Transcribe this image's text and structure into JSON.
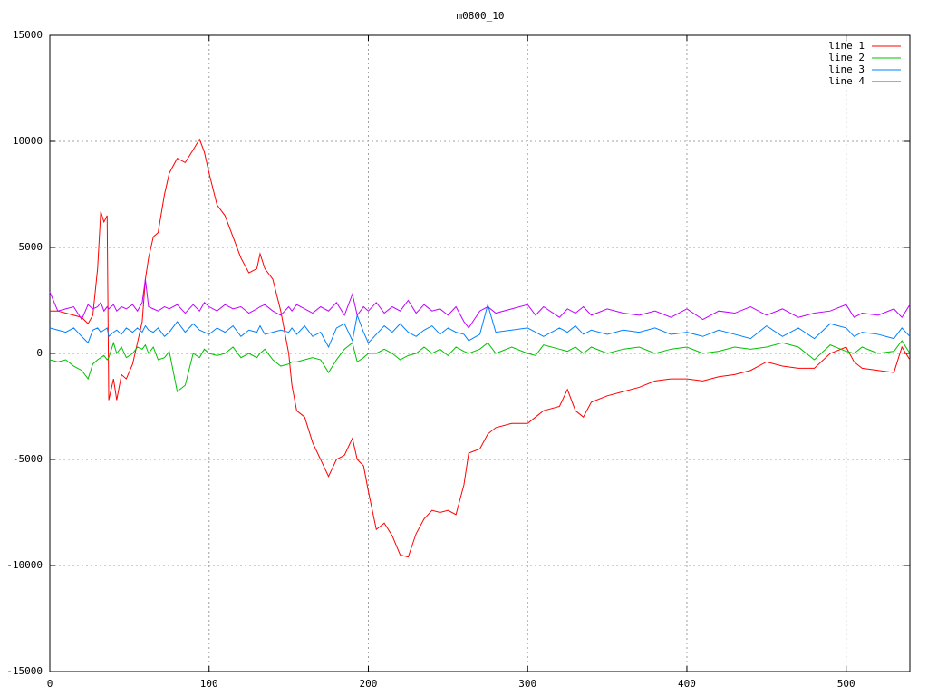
{
  "chart_data": {
    "type": "line",
    "title": "m0800_10",
    "x": [
      0,
      5,
      10,
      15,
      20,
      24,
      27,
      30,
      32,
      34,
      36,
      37,
      40,
      42,
      45,
      48,
      52,
      55,
      58,
      60,
      62,
      65,
      68,
      72,
      75,
      80,
      85,
      90,
      94,
      97,
      100,
      105,
      110,
      115,
      120,
      125,
      130,
      132,
      135,
      140,
      145,
      150,
      152,
      155,
      160,
      165,
      170,
      175,
      180,
      185,
      190,
      193,
      197,
      200,
      205,
      210,
      215,
      220,
      225,
      230,
      235,
      240,
      245,
      250,
      255,
      260,
      263,
      270,
      275,
      280,
      290,
      300,
      305,
      310,
      320,
      325,
      330,
      335,
      340,
      350,
      360,
      370,
      380,
      390,
      400,
      410,
      420,
      430,
      440,
      450,
      460,
      470,
      480,
      490,
      500,
      505,
      510,
      520,
      530,
      535,
      540
    ],
    "series": [
      {
        "name": "line 1",
        "color": "#ff0000",
        "values": [
          2000,
          2000,
          1900,
          1800,
          1700,
          1400,
          1800,
          4000,
          6700,
          6200,
          6500,
          -2200,
          -1200,
          -2200,
          -1000,
          -1200,
          -500,
          500,
          1500,
          3500,
          4500,
          5500,
          5700,
          7500,
          8500,
          9200,
          9000,
          9600,
          10100,
          9500,
          8500,
          7000,
          6500,
          5500,
          4500,
          3800,
          4000,
          4700,
          4000,
          3500,
          2000,
          0,
          -1500,
          -2700,
          -3000,
          -4200,
          -5000,
          -5800,
          -5000,
          -4800,
          -4000,
          -5000,
          -5300,
          -6500,
          -8300,
          -8000,
          -8600,
          -9500,
          -9600,
          -8500,
          -7800,
          -7400,
          -7500,
          -7400,
          -7600,
          -6200,
          -4700,
          -4500,
          -3800,
          -3500,
          -3300,
          -3300,
          -3000,
          -2700,
          -2500,
          -1700,
          -2700,
          -3000,
          -2300,
          -2000,
          -1800,
          -1600,
          -1300,
          -1200,
          -1200,
          -1300,
          -1100,
          -1000,
          -800,
          -400,
          -600,
          -700,
          -700,
          0,
          300,
          -400,
          -700,
          -800,
          -900,
          300,
          -300
        ]
      },
      {
        "name": "line 2",
        "color": "#00c000",
        "values": [
          -300,
          -400,
          -300,
          -600,
          -800,
          -1200,
          -500,
          -300,
          -200,
          -100,
          -300,
          -200,
          500,
          0,
          300,
          -200,
          0,
          300,
          200,
          400,
          0,
          300,
          -300,
          -200,
          100,
          -1800,
          -1500,
          0,
          -200,
          200,
          0,
          -100,
          0,
          300,
          -200,
          0,
          -200,
          0,
          200,
          -300,
          -600,
          -500,
          -400,
          -400,
          -300,
          -200,
          -300,
          -900,
          -300,
          200,
          500,
          -400,
          -200,
          0,
          0,
          200,
          0,
          -300,
          -100,
          0,
          300,
          0,
          200,
          -100,
          300,
          100,
          0,
          200,
          500,
          0,
          300,
          0,
          -100,
          400,
          200,
          100,
          300,
          0,
          300,
          0,
          200,
          300,
          0,
          200,
          300,
          0,
          100,
          300,
          200,
          300,
          500,
          300,
          -300,
          400,
          100,
          0,
          300,
          0,
          100,
          600,
          0
        ]
      },
      {
        "name": "line 3",
        "color": "#0080ff",
        "values": [
          1200,
          1100,
          1000,
          1200,
          800,
          500,
          1100,
          1200,
          1000,
          1100,
          1200,
          800,
          1000,
          1100,
          900,
          1200,
          1000,
          1200,
          1000,
          1300,
          1100,
          1000,
          1200,
          800,
          1000,
          1500,
          1000,
          1400,
          1100,
          1000,
          900,
          1200,
          1000,
          1300,
          800,
          1100,
          1000,
          1300,
          900,
          1000,
          1100,
          1000,
          1200,
          900,
          1300,
          800,
          1000,
          300,
          1200,
          1400,
          600,
          1800,
          1000,
          500,
          900,
          1300,
          1000,
          1400,
          1000,
          800,
          1100,
          1300,
          900,
          1200,
          1000,
          900,
          600,
          900,
          2300,
          1000,
          1100,
          1200,
          1000,
          800,
          1200,
          1000,
          1300,
          900,
          1100,
          900,
          1100,
          1000,
          1200,
          900,
          1000,
          800,
          1100,
          900,
          700,
          1300,
          800,
          1200,
          700,
          1400,
          1200,
          800,
          1000,
          900,
          700,
          1200,
          800
        ]
      },
      {
        "name": "line 4",
        "color": "#c000ff",
        "values": [
          2900,
          2000,
          2100,
          2200,
          1600,
          2300,
          2100,
          2200,
          2400,
          2000,
          2200,
          2100,
          2300,
          2000,
          2200,
          2100,
          2300,
          2000,
          2400,
          3500,
          2200,
          2100,
          2000,
          2200,
          2100,
          2300,
          1900,
          2300,
          2000,
          2400,
          2200,
          2000,
          2300,
          2100,
          2200,
          1900,
          2100,
          2200,
          2300,
          2000,
          1800,
          2200,
          2000,
          2300,
          2100,
          1900,
          2200,
          2000,
          2400,
          1800,
          2800,
          1800,
          2200,
          2000,
          2400,
          1900,
          2200,
          2000,
          2500,
          1900,
          2300,
          2000,
          2100,
          1800,
          2200,
          1500,
          1200,
          2000,
          2200,
          1900,
          2100,
          2300,
          1800,
          2200,
          1700,
          2100,
          1900,
          2200,
          1800,
          2100,
          1900,
          1800,
          2000,
          1700,
          2100,
          1600,
          2000,
          1900,
          2200,
          1800,
          2100,
          1700,
          1900,
          2000,
          2300,
          1700,
          1900,
          1800,
          2100,
          1700,
          2300
        ]
      }
    ],
    "xlim": [
      0,
      540
    ],
    "ylim": [
      -15000,
      15000
    ],
    "xticks": [
      0,
      100,
      200,
      300,
      400,
      500
    ],
    "yticks": [
      -15000,
      -10000,
      -5000,
      0,
      5000,
      10000,
      15000
    ],
    "grid": true,
    "legend": "top-right"
  }
}
